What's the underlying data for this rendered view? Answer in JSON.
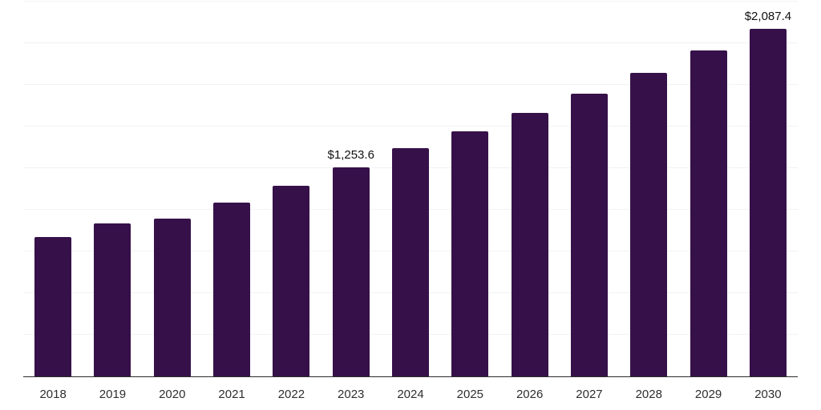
{
  "chart_data": {
    "type": "bar",
    "title": "",
    "xlabel": "",
    "ylabel": "",
    "categories": [
      "2018",
      "2019",
      "2020",
      "2021",
      "2022",
      "2023",
      "2024",
      "2025",
      "2026",
      "2027",
      "2028",
      "2029",
      "2030"
    ],
    "values": [
      835.2,
      917.6,
      945.8,
      1044.5,
      1146.1,
      1253.6,
      1369.5,
      1469.0,
      1582.0,
      1697.5,
      1824.0,
      1955.5,
      2087.4
    ],
    "data_labels": {
      "2023": "$1,253.6",
      "2030": "$2,087.4"
    },
    "ylim": [
      0,
      2250
    ],
    "grid_step": 250,
    "grid": true,
    "y_axis_labels_visible": false,
    "legend_position": "none",
    "colors": {
      "bar": "#361149",
      "gridline": "#f2f2f4",
      "axis_line": "#2b2b2b",
      "tick_label": "#2e2e2e",
      "data_label": "#111111",
      "background": "#ffffff"
    }
  }
}
